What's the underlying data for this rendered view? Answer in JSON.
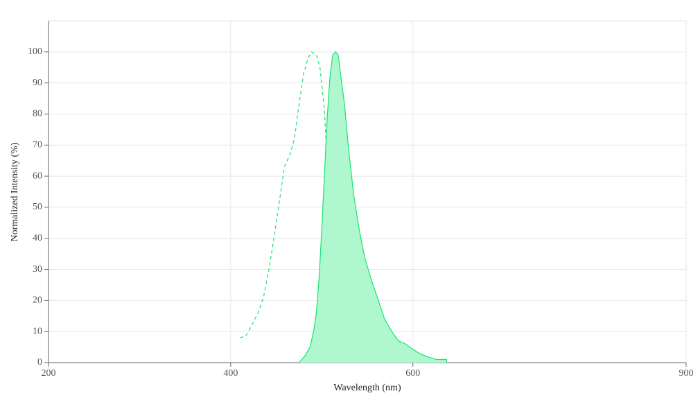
{
  "chart_data": {
    "type": "line",
    "x_label": "Wavelength (nm)",
    "y_label": "Normalized Intensity (%)",
    "xlim": [
      200,
      900
    ],
    "xticks": [
      200,
      400,
      600,
      900
    ],
    "ylim": [
      0,
      110
    ],
    "yticks": [
      0,
      10,
      20,
      30,
      40,
      50,
      60,
      70,
      80,
      90,
      100
    ],
    "grid": true,
    "series": [
      {
        "color": "#19e36f",
        "dashed": true,
        "filled": false,
        "x": [
          410,
          417,
          423,
          430,
          436,
          442,
          448,
          454,
          459,
          465,
          470,
          475,
          480,
          485,
          489,
          494,
          498,
          503,
          506,
          509,
          512,
          516,
          520,
          526,
          532,
          538
        ],
        "values": [
          8,
          8.7,
          12,
          16,
          21,
          30,
          41,
          53,
          63,
          67,
          72,
          83,
          93,
          98,
          100,
          99,
          95,
          81,
          63,
          45,
          30,
          16,
          7,
          2,
          1,
          0
        ]
      },
      {
        "color": "#19e36f",
        "dashed": false,
        "filled": true,
        "fill_color": "#aef7cf",
        "x": [
          475,
          481,
          487,
          491,
          494,
          497,
          500,
          503,
          506,
          509,
          512,
          515,
          518,
          521,
          525,
          529,
          535,
          541,
          547,
          554,
          561,
          569,
          577,
          584,
          592,
          599,
          607,
          615,
          626,
          637,
          637
        ],
        "values": [
          0,
          2,
          5,
          10,
          16,
          27,
          43,
          61,
          79,
          92,
          99,
          100,
          99,
          92,
          83,
          70,
          54,
          43,
          34,
          27,
          21,
          14,
          10,
          7,
          6,
          4.5,
          3,
          2,
          1,
          1,
          0
        ]
      }
    ]
  }
}
